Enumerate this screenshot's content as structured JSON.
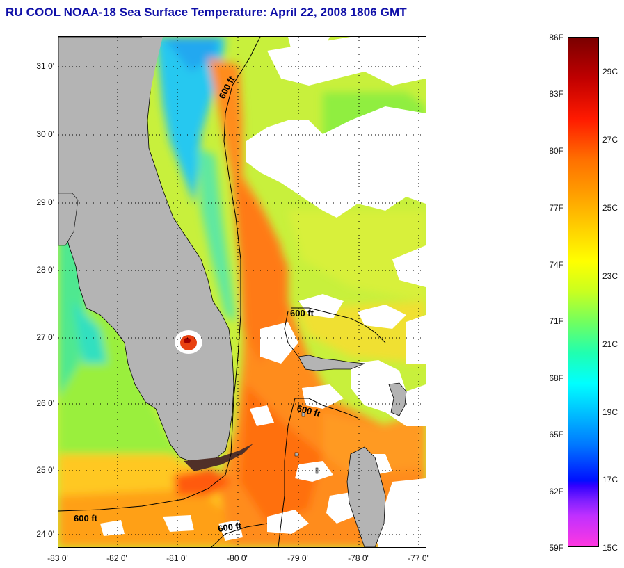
{
  "title": "RU COOL  NOAA-18  Sea Surface Temperature:  April 22, 2008 1806 GMT",
  "y_axis_labels": [
    "31 0'",
    "30 0'",
    "29 0'",
    "28 0'",
    "27 0'",
    "26 0'",
    "25 0'",
    "24 0'"
  ],
  "x_axis_labels": [
    "-83 0'",
    "-82 0'",
    "-81 0'",
    "-80 0'",
    "-79 0'",
    "-78 0'",
    "-77 0'"
  ],
  "contour_label": "600 ft",
  "colorbar": {
    "fahrenheit_labels": [
      "86F",
      "83F",
      "80F",
      "77F",
      "74F",
      "71F",
      "68F",
      "65F",
      "62F",
      "59F"
    ],
    "celsius_labels": [
      "29C",
      "27C",
      "25C",
      "23C",
      "21C",
      "19C",
      "17C",
      "15C"
    ]
  },
  "colors": {
    "title": "#1010a8",
    "land": "#b4b4b4",
    "cloud": "#ffffff",
    "gulf_stream": "#ff8c1e",
    "coastal_cold": "#28c8f0"
  }
}
